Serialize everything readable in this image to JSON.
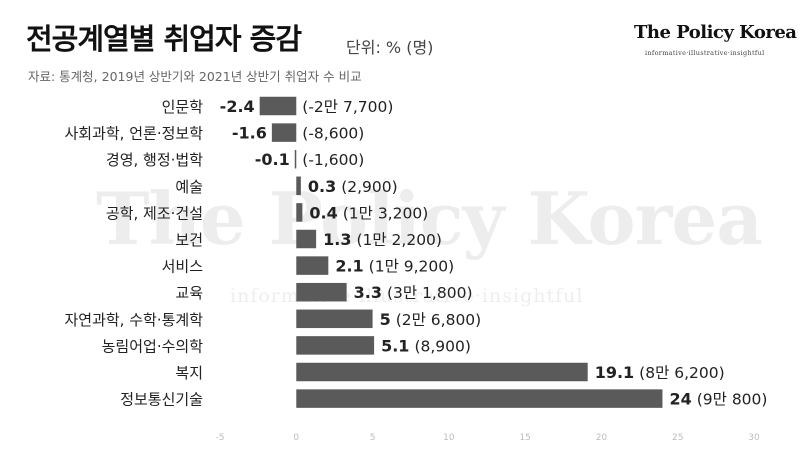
{
  "title": "전공계열별 취업자 증감",
  "unit": "단위: % (명)",
  "source": "자료: 통계청, 2019년 상반기와 2021년 상반기 취업자 수 비교",
  "brand": {
    "name": "The Policy Korea",
    "tagline": "informative·illustrative·insightful"
  },
  "colors": {
    "bar": "#5a5a5a",
    "tick": "#bdbdbd",
    "label": "#222222"
  },
  "chart_data": {
    "type": "bar",
    "orientation": "horizontal",
    "categories": [
      "인문학",
      "사회과학, 언론·정보학",
      "경영, 행정·법학",
      "예술",
      "공학, 제조·건설",
      "보건",
      "서비스",
      "교육",
      "자연과학, 수학·통계학",
      "농림어업·수의학",
      "복지",
      "정보통신기술"
    ],
    "values": [
      -2.4,
      -1.6,
      -0.1,
      0.3,
      0.4,
      1.3,
      2.1,
      3.3,
      5,
      5.1,
      19.1,
      24
    ],
    "value_labels": [
      "-2.4",
      "-1.6",
      "-0.1",
      "0.3",
      "0.4",
      "1.3",
      "2.1",
      "3.3",
      "5",
      "5.1",
      "19.1",
      "24"
    ],
    "annotations": [
      "(-2만 7,700)",
      "(-8,600)",
      "(-1,600)",
      "(2,900)",
      "(1만 3,200)",
      "(1만 2,200)",
      "(1만 9,200)",
      "(3만 1,800)",
      "(2만 6,800)",
      "(8,900)",
      "(8만 6,200)",
      "(9만 800)"
    ],
    "xticks": [
      -5,
      0,
      5,
      10,
      15,
      20,
      25,
      30
    ],
    "xlim": [
      -5,
      30
    ],
    "grid": false,
    "legend": "none"
  }
}
